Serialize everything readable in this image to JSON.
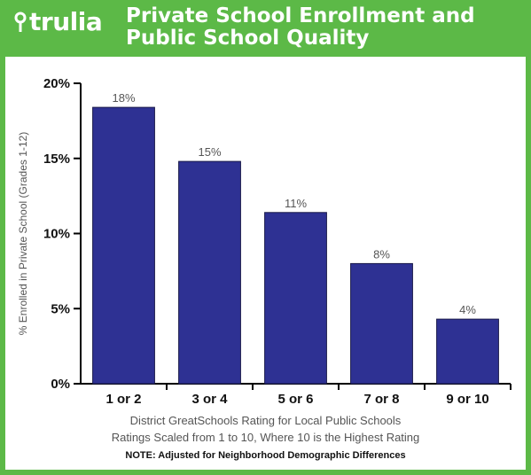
{
  "brand": {
    "logo_text": "trulia",
    "colors": {
      "header_bg": "#5cb947",
      "bar": "#2e3193"
    }
  },
  "title_lines": [
    "Private School Enrollment and",
    "Public School Quality"
  ],
  "chart_data": {
    "type": "bar",
    "categories": [
      "1 or 2",
      "3 or 4",
      "5 or 6",
      "7 or 8",
      "9 or 10"
    ],
    "values": [
      18.4,
      14.8,
      11.4,
      8.0,
      4.3
    ],
    "value_labels": [
      "18%",
      "15%",
      "11%",
      "8%",
      "4%"
    ],
    "ylabel": "% Enrolled in Private School (Grades 1-12)",
    "xlabel_lines": [
      "District GreatSchools Rating for Local Public Schools",
      "Ratings Scaled from 1 to 10, Where 10 is the Highest Rating"
    ],
    "note": "NOTE: Adjusted for Neighborhood Demographic Differences",
    "ylim": [
      0,
      20
    ],
    "yticks": [
      0,
      5,
      10,
      15,
      20
    ],
    "ytick_labels": [
      "0%",
      "5%",
      "10%",
      "15%",
      "20%"
    ],
    "grid": false,
    "legend": "none"
  }
}
